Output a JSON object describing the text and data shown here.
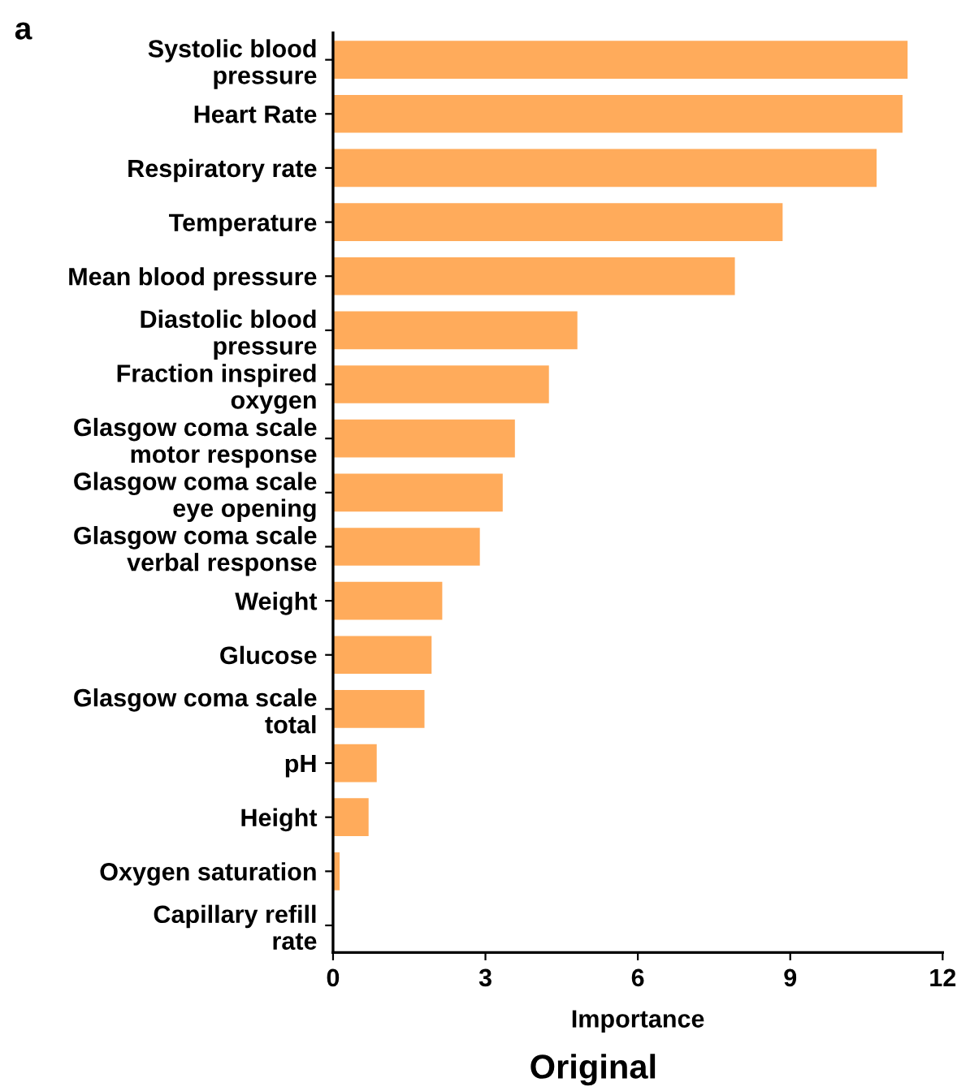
{
  "chart_data": {
    "type": "bar",
    "orientation": "horizontal",
    "xlabel": "Importance",
    "categories": [
      "Systolic blood\npressure",
      "Heart Rate",
      "Respiratory rate",
      "Temperature",
      "Mean blood pressure",
      "Diastolic blood\npressure",
      "Fraction inspired\noxygen",
      "Glasgow coma scale\nmotor response",
      "Glasgow coma scale\neye opening",
      "Glasgow coma scale\nverbal response",
      "Weight",
      "Glucose",
      "Glasgow coma scale\ntotal",
      "pH",
      "Height",
      "Oxygen saturation",
      "Capillary refill\nrate"
    ],
    "values": [
      11.31,
      11.21,
      10.7,
      8.85,
      7.91,
      4.81,
      4.25,
      3.58,
      3.34,
      2.89,
      2.15,
      1.94,
      1.8,
      0.86,
      0.7,
      0.13,
      0
    ],
    "color": "#ffab5b",
    "xlim": [
      0,
      12
    ],
    "xticks": [
      0,
      3,
      6,
      9,
      12
    ],
    "annotations": [
      "a",
      "Original"
    ]
  }
}
